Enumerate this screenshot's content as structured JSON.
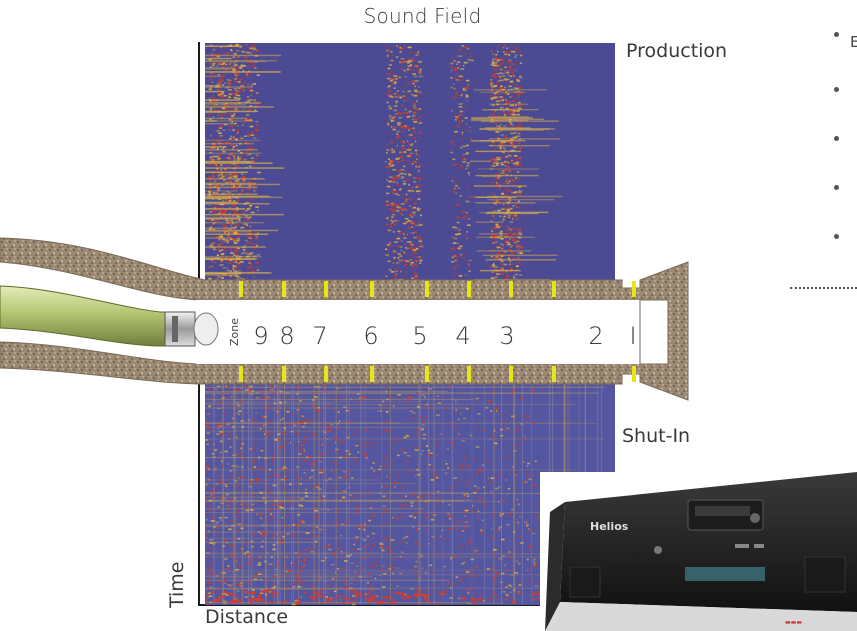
{
  "title": "Sound Field",
  "labels": {
    "production": "Production",
    "shut_in": "Shut-In",
    "time": "Time",
    "distance": "Distance",
    "zone": "Zone"
  },
  "zones": [
    "9",
    "8",
    "7",
    "6",
    "5",
    "4",
    "3",
    "2",
    "I"
  ],
  "device": {
    "brand": "Helios"
  },
  "right_panel": {
    "bullet_count": 5,
    "clipped_text": "E"
  },
  "colors": {
    "heatmap_background": "#4b4a93",
    "heatmap_hot": "#e0381e",
    "heatmap_warm": "#d8b04a",
    "rock": "#9a8873",
    "cable": "#b7c77b",
    "zone_marker": "#e6e617"
  }
}
